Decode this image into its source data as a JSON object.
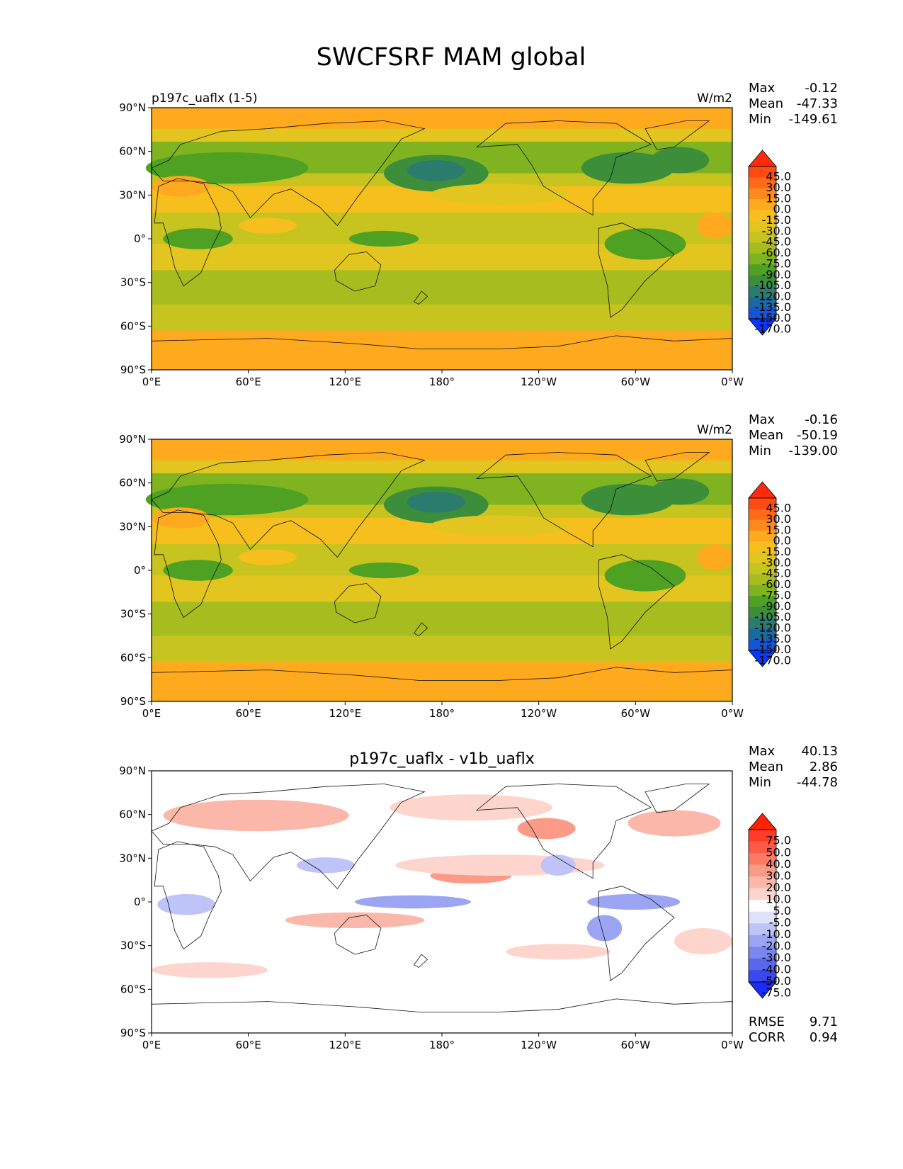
{
  "title": "SWCFSRF MAM global",
  "lon_ticks": [
    "0°E",
    "60°E",
    "120°E",
    "180°",
    "120°W",
    "60°W",
    "0°W"
  ],
  "lat_ticks": [
    "90°N",
    "60°N",
    "30°N",
    "0°",
    "30°S",
    "60°S",
    "90°S"
  ],
  "panels": [
    {
      "left_label": "p197c_uaflx (1-5)",
      "center_label": "",
      "units": "W/m2",
      "stats": [
        {
          "label": "Max",
          "value": "-0.12"
        },
        {
          "label": "Mean",
          "value": "-47.33"
        },
        {
          "label": "Min",
          "value": "-149.61"
        }
      ],
      "extra_stats": [],
      "colorbar": {
        "labels": [
          "45.0",
          "30.0",
          "15.0",
          "0.0",
          "-15.0",
          "-30.0",
          "-45.0",
          "-60.0",
          "-75.0",
          "-90.0",
          "-105.0",
          "-120.0",
          "-135.0",
          "-150.0",
          "-170.0"
        ],
        "colors": [
          "#ff2a0a",
          "#ff4a12",
          "#ff6a18",
          "#ff8a1c",
          "#ffaa1e",
          "#f7bf1e",
          "#e3c51f",
          "#c7c31f",
          "#a6bd1f",
          "#7fb31f",
          "#4ea122",
          "#3d8e3b",
          "#2c7c6e",
          "#1a6aa0",
          "#1455d8",
          "#0a36ff"
        ]
      }
    },
    {
      "left_label": "",
      "center_label": "",
      "units": "W/m2",
      "stats": [
        {
          "label": "Max",
          "value": "-0.16"
        },
        {
          "label": "Mean",
          "value": "-50.19"
        },
        {
          "label": "Min",
          "value": "-139.00"
        }
      ],
      "extra_stats": [],
      "colorbar": {
        "labels": [
          "45.0",
          "30.0",
          "15.0",
          "0.0",
          "-15.0",
          "-30.0",
          "-45.0",
          "-60.0",
          "-75.0",
          "-90.0",
          "-105.0",
          "-120.0",
          "-135.0",
          "-150.0",
          "-170.0"
        ],
        "colors": [
          "#ff2a0a",
          "#ff4a12",
          "#ff6a18",
          "#ff8a1c",
          "#ffaa1e",
          "#f7bf1e",
          "#e3c51f",
          "#c7c31f",
          "#a6bd1f",
          "#7fb31f",
          "#4ea122",
          "#3d8e3b",
          "#2c7c6e",
          "#1a6aa0",
          "#1455d8",
          "#0a36ff"
        ]
      }
    },
    {
      "left_label": "",
      "center_label": "p197c_uaflx - v1b_uaflx",
      "units": "",
      "stats": [
        {
          "label": "Max",
          "value": "40.13"
        },
        {
          "label": "Mean",
          "value": "2.86"
        },
        {
          "label": "Min",
          "value": "-44.78"
        }
      ],
      "extra_stats": [
        {
          "label": "RMSE",
          "value": "9.71"
        },
        {
          "label": "CORR",
          "value": "0.94"
        }
      ],
      "colorbar": {
        "labels": [
          "75.0",
          "50.0",
          "40.0",
          "30.0",
          "20.0",
          "10.0",
          "5.0",
          "-5.0",
          "-10.0",
          "-20.0",
          "-30.0",
          "-40.0",
          "-50.0",
          "-75.0"
        ],
        "colors": [
          "#ff2200",
          "#ff3c28",
          "#ff5a46",
          "#ff7a66",
          "#fc9a88",
          "#fbb8aa",
          "#fdd5cc",
          "#ffffff",
          "#dfe2fb",
          "#bec4f8",
          "#9ca5f4",
          "#7b86f0",
          "#5a67ed",
          "#3a49ef",
          "#1a2bfa"
        ]
      }
    }
  ]
}
